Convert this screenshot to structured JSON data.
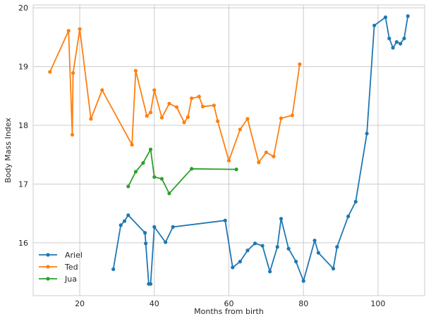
{
  "chart_data": {
    "type": "line",
    "title": "",
    "xlabel": "Months from birth",
    "ylabel": "Body Mass Index",
    "xlim": [
      7.5,
      112.5
    ],
    "ylim": [
      15.1,
      20.05
    ],
    "xticks": [
      20,
      40,
      60,
      80,
      100
    ],
    "yticks": [
      16,
      17,
      18,
      19,
      20
    ],
    "grid": true,
    "legend": "lower left",
    "series": [
      {
        "name": "Ariel",
        "color": "#1f77b4",
        "x": [
          29,
          31,
          32,
          33,
          37.5,
          37.7,
          38.5,
          39,
          40,
          43,
          45,
          59,
          61,
          63,
          65,
          67,
          69,
          71,
          73,
          74,
          76,
          78,
          80,
          83,
          84,
          88,
          89,
          92,
          94,
          97,
          99,
          102,
          103,
          104,
          105,
          106,
          107,
          108
        ],
        "y": [
          15.55,
          16.3,
          16.37,
          16.47,
          16.17,
          15.99,
          15.3,
          15.3,
          16.27,
          16.01,
          16.27,
          16.38,
          15.58,
          15.68,
          15.87,
          15.99,
          15.95,
          15.51,
          15.93,
          16.41,
          15.9,
          15.68,
          15.35,
          16.04,
          15.83,
          15.56,
          15.93,
          16.45,
          16.7,
          17.86,
          19.7,
          19.84,
          19.48,
          19.32,
          19.42,
          19.39,
          19.48,
          19.86
        ]
      },
      {
        "name": "Ted",
        "color": "#ff7f0e",
        "x": [
          12,
          17,
          18,
          18.2,
          20,
          23,
          26,
          34,
          35,
          38,
          39,
          40,
          42,
          44,
          46,
          48,
          49,
          50,
          52,
          53,
          56,
          57,
          60,
          63,
          65,
          68,
          70,
          72,
          74,
          77,
          79
        ],
        "y": [
          18.91,
          19.61,
          17.84,
          18.89,
          19.64,
          18.11,
          18.6,
          17.67,
          18.93,
          18.16,
          18.22,
          18.6,
          18.13,
          18.37,
          18.31,
          18.05,
          18.14,
          18.46,
          18.49,
          18.32,
          18.34,
          18.07,
          17.4,
          17.93,
          18.11,
          17.37,
          17.54,
          17.47,
          18.12,
          18.17,
          19.04
        ]
      },
      {
        "name": "Jua",
        "color": "#2ca02c",
        "x": [
          33,
          35,
          37,
          39,
          40,
          42,
          44,
          50,
          62
        ],
        "y": [
          16.96,
          17.21,
          17.36,
          17.59,
          17.12,
          17.09,
          16.84,
          17.26,
          17.25
        ]
      }
    ]
  }
}
